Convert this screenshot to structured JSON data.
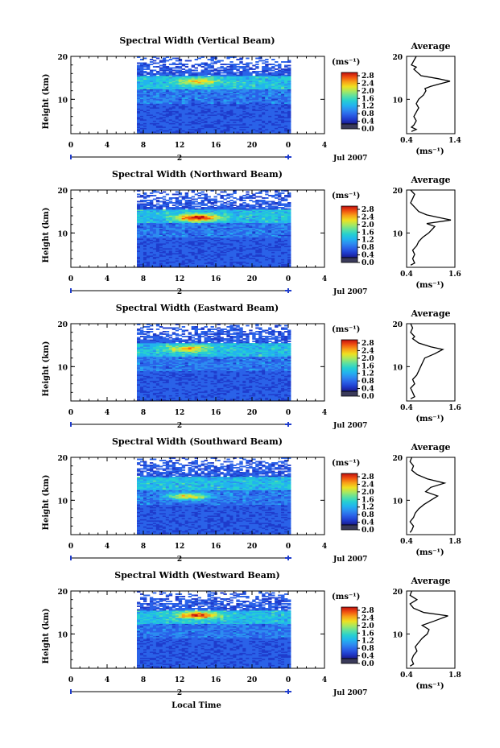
{
  "figure": {
    "xlabel": "Local Time",
    "date_label": "Jul 2007",
    "day_label": "2",
    "colors": {
      "colormap": [
        "#1a1a8c",
        "#1f3ccc",
        "#2a62e8",
        "#2d8cf0",
        "#22b4ee",
        "#27d0d0",
        "#5ee0a0",
        "#a8e860",
        "#f0e020",
        "#f8a018",
        "#f05010",
        "#c01010"
      ],
      "colorbar_bottom_swatch": "#3a3a5a",
      "line": "#000000",
      "marker": "#1f3ccc"
    }
  },
  "chart_data": [
    {
      "type": "heatmap",
      "title": "Spectral Width (Vertical Beam)",
      "ylabel": "Height (km)",
      "xlim": [
        0,
        4
      ],
      "x_ticks": [
        "0",
        "4",
        "8",
        "12",
        "16",
        "20",
        "0",
        "4"
      ],
      "ylim": [
        2,
        20
      ],
      "y_ticks": [
        "10",
        "20"
      ],
      "data_time_range_h": [
        7.5,
        24
      ],
      "colorbar": {
        "label": "(ms⁻¹)",
        "range": [
          0.0,
          2.8
        ],
        "ticks": [
          "2.8",
          "2.4",
          "2.0",
          "1.6",
          "1.2",
          "0.8",
          "0.4",
          "0.0"
        ]
      },
      "hotspot": {
        "height_km": 14.2,
        "time_h": 14,
        "value": 2.0
      },
      "average": {
        "title": "Average",
        "xlabel": "(ms⁻¹)",
        "xlim": [
          0.4,
          1.4
        ],
        "x_ticks": [
          "0.4",
          "1.4"
        ],
        "y_ticks": [
          "10",
          "20"
        ],
        "profile": [
          [
            0.5,
            2.5
          ],
          [
            0.6,
            3
          ],
          [
            0.5,
            3.5
          ],
          [
            0.55,
            4
          ],
          [
            0.6,
            5
          ],
          [
            0.55,
            6
          ],
          [
            0.6,
            7
          ],
          [
            0.65,
            8
          ],
          [
            0.6,
            9
          ],
          [
            0.65,
            10
          ],
          [
            0.75,
            11
          ],
          [
            0.8,
            12
          ],
          [
            0.78,
            12.5
          ],
          [
            0.9,
            13
          ],
          [
            1.05,
            13.5
          ],
          [
            1.3,
            14.2
          ],
          [
            1.05,
            14.8
          ],
          [
            0.7,
            15.5
          ],
          [
            0.6,
            16.5
          ],
          [
            0.55,
            17
          ],
          [
            0.6,
            17.5
          ],
          [
            0.5,
            18
          ],
          [
            0.55,
            19
          ],
          [
            0.6,
            20
          ]
        ]
      }
    },
    {
      "type": "heatmap",
      "title": "Spectral Width (Northward Beam)",
      "ylabel": "Height (km)",
      "xlim": [
        0,
        4
      ],
      "x_ticks": [
        "0",
        "4",
        "8",
        "12",
        "16",
        "20",
        "0",
        "4"
      ],
      "ylim": [
        2,
        20
      ],
      "y_ticks": [
        "10",
        "20"
      ],
      "data_time_range_h": [
        7.5,
        24
      ],
      "colorbar": {
        "label": "(ms⁻¹)",
        "range": [
          0.0,
          2.8
        ],
        "ticks": [
          "2.8",
          "2.4",
          "2.0",
          "1.6",
          "1.2",
          "0.8",
          "0.4",
          "0.0"
        ]
      },
      "hotspot": {
        "height_km": 13.6,
        "time_h": 14,
        "value": 2.6
      },
      "average": {
        "title": "Average",
        "xlabel": "(ms⁻¹)",
        "xlim": [
          0.4,
          1.6
        ],
        "x_ticks": [
          "0.4",
          "1.6"
        ],
        "y_ticks": [
          "10",
          "20"
        ],
        "profile": [
          [
            0.5,
            2.5
          ],
          [
            0.6,
            3
          ],
          [
            0.55,
            4
          ],
          [
            0.6,
            5
          ],
          [
            0.55,
            6
          ],
          [
            0.65,
            7
          ],
          [
            0.7,
            8
          ],
          [
            0.8,
            9
          ],
          [
            0.95,
            10
          ],
          [
            1.05,
            11
          ],
          [
            1.1,
            11.5
          ],
          [
            0.9,
            12.2
          ],
          [
            1.5,
            13
          ],
          [
            1.2,
            13.6
          ],
          [
            0.9,
            14.2
          ],
          [
            0.7,
            15
          ],
          [
            0.6,
            16
          ],
          [
            0.5,
            17
          ],
          [
            0.55,
            18
          ],
          [
            0.6,
            19
          ],
          [
            0.5,
            20
          ]
        ]
      }
    },
    {
      "type": "heatmap",
      "title": "Spectral Width (Eastward Beam)",
      "ylabel": "Height (km)",
      "xlim": [
        0,
        4
      ],
      "x_ticks": [
        "0",
        "4",
        "8",
        "12",
        "16",
        "20",
        "0",
        "4"
      ],
      "ylim": [
        2,
        20
      ],
      "y_ticks": [
        "10",
        "20"
      ],
      "data_time_range_h": [
        7.5,
        24
      ],
      "colorbar": {
        "label": "(ms⁻¹)",
        "range": [
          0.0,
          2.8
        ],
        "ticks": [
          "2.8",
          "2.4",
          "2.0",
          "1.6",
          "1.2",
          "0.8",
          "0.4",
          "0.0"
        ]
      },
      "hotspot": {
        "height_km": 14.2,
        "time_h": 13,
        "value": 2.0
      },
      "average": {
        "title": "Average",
        "xlabel": "(ms⁻¹)",
        "xlim": [
          0.4,
          1.6
        ],
        "x_ticks": [
          "0.4",
          "1.6"
        ],
        "y_ticks": [
          "10",
          "20"
        ],
        "profile": [
          [
            0.5,
            2.5
          ],
          [
            0.6,
            3
          ],
          [
            0.55,
            4
          ],
          [
            0.5,
            5
          ],
          [
            0.6,
            6
          ],
          [
            0.55,
            7
          ],
          [
            0.65,
            8
          ],
          [
            0.7,
            9
          ],
          [
            0.75,
            10
          ],
          [
            0.8,
            11
          ],
          [
            0.85,
            12
          ],
          [
            1.1,
            13
          ],
          [
            1.3,
            14
          ],
          [
            1.0,
            14.6
          ],
          [
            0.7,
            15.5
          ],
          [
            0.55,
            16.5
          ],
          [
            0.6,
            17
          ],
          [
            0.5,
            18
          ],
          [
            0.55,
            19
          ],
          [
            0.5,
            20
          ]
        ]
      }
    },
    {
      "type": "heatmap",
      "title": "Spectral Width (Southward Beam)",
      "ylabel": "Height (km)",
      "xlim": [
        0,
        4
      ],
      "x_ticks": [
        "0",
        "4",
        "8",
        "12",
        "16",
        "20",
        "0",
        "4"
      ],
      "ylim": [
        2,
        20
      ],
      "y_ticks": [
        "10",
        "20"
      ],
      "data_time_range_h": [
        7.5,
        24
      ],
      "colorbar": {
        "label": "(ms⁻¹)",
        "range": [
          0.0,
          2.8
        ],
        "ticks": [
          "2.8",
          "2.4",
          "2.0",
          "1.6",
          "1.2",
          "0.8",
          "0.4",
          "0.0"
        ]
      },
      "hotspot": {
        "height_km": 11.0,
        "time_h": 13,
        "value": 2.4
      },
      "average": {
        "title": "Average",
        "xlabel": "(ms⁻¹)",
        "xlim": [
          0.4,
          1.8
        ],
        "x_ticks": [
          "0.4",
          "1.8"
        ],
        "y_ticks": [
          "10",
          "20"
        ],
        "profile": [
          [
            0.5,
            2.5
          ],
          [
            0.55,
            3
          ],
          [
            0.6,
            4
          ],
          [
            0.5,
            5
          ],
          [
            0.6,
            6
          ],
          [
            0.65,
            7
          ],
          [
            0.75,
            8
          ],
          [
            0.9,
            9
          ],
          [
            1.1,
            10
          ],
          [
            1.3,
            11
          ],
          [
            0.95,
            12
          ],
          [
            1.1,
            13
          ],
          [
            1.5,
            14
          ],
          [
            1.0,
            15
          ],
          [
            0.7,
            16
          ],
          [
            0.55,
            17
          ],
          [
            0.6,
            18
          ],
          [
            0.5,
            19
          ],
          [
            0.55,
            20
          ]
        ]
      }
    },
    {
      "type": "heatmap",
      "title": "Spectral Width (Westward Beam)",
      "ylabel": "Height (km)",
      "xlim": [
        0,
        4
      ],
      "x_ticks": [
        "0",
        "4",
        "8",
        "12",
        "16",
        "20",
        "0",
        "4"
      ],
      "ylim": [
        2,
        20
      ],
      "y_ticks": [
        "10",
        "20"
      ],
      "data_time_range_h": [
        7.5,
        24
      ],
      "colorbar": {
        "label": "(ms⁻¹)",
        "range": [
          0.0,
          2.8
        ],
        "ticks": [
          "2.8",
          "2.4",
          "2.0",
          "1.6",
          "1.2",
          "0.8",
          "0.4",
          "0.0"
        ]
      },
      "hotspot": {
        "height_km": 14.4,
        "time_h": 14,
        "value": 2.5
      },
      "average": {
        "title": "Average",
        "xlabel": "(ms⁻¹)",
        "xlim": [
          0.4,
          1.8
        ],
        "x_ticks": [
          "0.4",
          "1.8"
        ],
        "y_ticks": [
          "10",
          "20"
        ],
        "profile": [
          [
            0.5,
            2.5
          ],
          [
            0.6,
            3
          ],
          [
            0.55,
            4
          ],
          [
            0.6,
            5
          ],
          [
            0.7,
            6
          ],
          [
            0.65,
            7
          ],
          [
            0.75,
            8
          ],
          [
            0.85,
            9
          ],
          [
            1.0,
            10
          ],
          [
            1.05,
            11
          ],
          [
            0.85,
            12
          ],
          [
            1.2,
            13
          ],
          [
            1.6,
            14.2
          ],
          [
            0.9,
            15
          ],
          [
            0.6,
            16
          ],
          [
            0.5,
            17
          ],
          [
            0.7,
            18
          ],
          [
            0.5,
            19
          ],
          [
            0.55,
            20
          ]
        ]
      }
    }
  ]
}
